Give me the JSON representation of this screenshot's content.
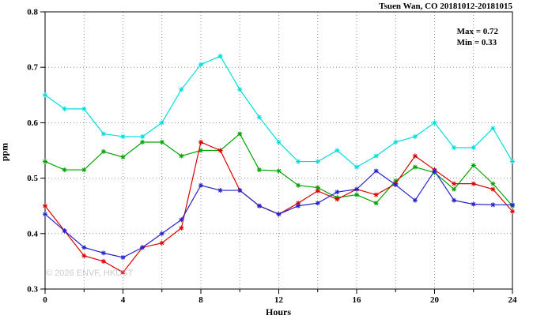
{
  "header": {
    "title": "Tsuen Wan, CO 20181012-20181015"
  },
  "annotation": {
    "max_label": "Max = 0.72",
    "min_label": "Min = 0.33"
  },
  "watermark": "© 2026 ENVF, HKUST",
  "chart_data": {
    "type": "line",
    "title": "Tsuen Wan, CO 20181012-20181015",
    "xlabel": "Hours",
    "ylabel": "ppm",
    "xlim": [
      0,
      24
    ],
    "ylim": [
      0.3,
      0.8
    ],
    "x_ticks": [
      0,
      4,
      8,
      12,
      16,
      20,
      24
    ],
    "y_ticks": [
      0.3,
      0.4,
      0.5,
      0.6,
      0.7,
      0.8
    ],
    "grid": true,
    "legend_position": "none",
    "marker": "asterisk",
    "x": [
      0,
      1,
      2,
      3,
      4,
      5,
      6,
      7,
      8,
      9,
      10,
      11,
      12,
      13,
      14,
      15,
      16,
      17,
      18,
      19,
      20,
      21,
      22,
      23,
      24
    ],
    "series": [
      {
        "name": "series-cyan",
        "color": "#00dddd",
        "values": [
          0.65,
          0.625,
          0.625,
          0.58,
          0.575,
          0.575,
          0.6,
          0.66,
          0.705,
          0.72,
          0.66,
          0.61,
          0.565,
          0.53,
          0.53,
          0.55,
          0.52,
          0.54,
          0.565,
          0.575,
          0.6,
          0.555,
          0.555,
          0.59,
          0.53
        ]
      },
      {
        "name": "series-green",
        "color": "#00a400",
        "values": [
          0.53,
          0.515,
          0.515,
          0.548,
          0.538,
          0.565,
          0.565,
          0.54,
          0.55,
          0.55,
          0.58,
          0.515,
          0.513,
          0.487,
          0.483,
          0.465,
          0.47,
          0.455,
          0.495,
          0.52,
          0.51,
          0.48,
          0.523,
          0.49,
          0.45
        ]
      },
      {
        "name": "series-red",
        "color": "#dd0000",
        "values": [
          0.45,
          0.405,
          0.36,
          0.35,
          0.33,
          0.375,
          0.383,
          0.41,
          0.565,
          0.55,
          0.478,
          0.45,
          0.435,
          0.455,
          0.477,
          0.462,
          0.48,
          0.47,
          0.49,
          0.54,
          0.515,
          0.49,
          0.49,
          0.48,
          0.44
        ]
      },
      {
        "name": "series-blue",
        "color": "#2222cc",
        "values": [
          0.435,
          0.405,
          0.375,
          0.365,
          0.357,
          0.375,
          0.4,
          0.425,
          0.487,
          0.478,
          0.478,
          0.45,
          0.435,
          0.45,
          0.455,
          0.475,
          0.48,
          0.513,
          0.488,
          0.46,
          0.513,
          0.46,
          0.453,
          0.452,
          0.452
        ]
      }
    ],
    "stats": {
      "max": 0.72,
      "min": 0.33
    }
  }
}
